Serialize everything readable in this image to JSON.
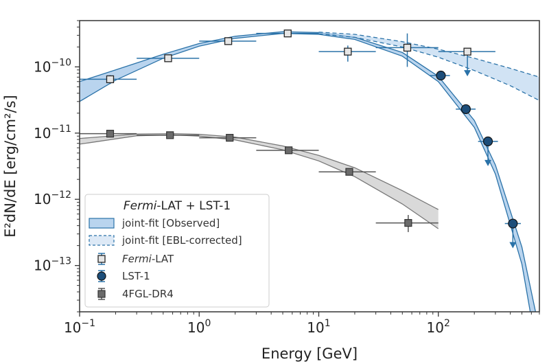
{
  "chart_data": {
    "type": "scatter",
    "x_scale": "log",
    "y_scale": "log",
    "xlabel": "Energy   [GeV]",
    "ylabel": "E²dN/dE   [erg/cm²/s]",
    "xlim": [
      0.1,
      700
    ],
    "ylim": [
      2e-14,
      5e-10
    ],
    "x_ticks": [
      {
        "value": 0.1,
        "base": "10",
        "exp": "−1"
      },
      {
        "value": 1,
        "base": "10",
        "exp": "0"
      },
      {
        "value": 10,
        "base": "10",
        "exp": "1"
      },
      {
        "value": 100,
        "base": "10",
        "exp": "2"
      }
    ],
    "y_ticks": [
      {
        "value": 1e-13,
        "base": "10",
        "exp": "−13"
      },
      {
        "value": 1e-12,
        "base": "10",
        "exp": "−12"
      },
      {
        "value": 1e-11,
        "base": "10",
        "exp": "−11"
      },
      {
        "value": 1e-10,
        "base": "10",
        "exp": "−10"
      }
    ],
    "grid": false,
    "legend": {
      "placement": "bottom-left",
      "title_italic": "Fermi",
      "title_rest": "-LAT + LST-1",
      "entries": [
        {
          "kind": "band",
          "label": "joint-fit [Observed]"
        },
        {
          "kind": "band-dashed",
          "label": "joint-fit [EBL-corrected]"
        },
        {
          "kind": "marker-square-open",
          "label_italic": "Fermi",
          "label_rest": "-LAT"
        },
        {
          "kind": "marker-circle",
          "label": "LST-1"
        },
        {
          "kind": "marker-square-grey",
          "label": "4FGL-DR4"
        }
      ]
    },
    "colors": {
      "blue": "#2a72a8",
      "blue_fill": "#b9d4ee",
      "blue_marker": "#1d4e7a",
      "grey": "#555555",
      "grey_fill": "#d9d9d9",
      "open_marker_fill": "#e6e6e6"
    },
    "series": [
      {
        "name": "Fermi-LAT",
        "marker": "square-open",
        "points": [
          {
            "x": 0.18,
            "y": 6.5e-11,
            "xlo": 0.1,
            "xhi": 0.3,
            "ylo": 5.5e-11,
            "yhi": 7.5e-11
          },
          {
            "x": 0.55,
            "y": 1.35e-10,
            "xlo": 0.3,
            "xhi": 1.0,
            "ylo": 1.25e-10,
            "yhi": 1.45e-10
          },
          {
            "x": 1.75,
            "y": 2.45e-10,
            "xlo": 1.0,
            "xhi": 3.0,
            "ylo": 2.3e-10,
            "yhi": 2.6e-10
          },
          {
            "x": 5.5,
            "y": 3.2e-10,
            "xlo": 3.0,
            "xhi": 10.0,
            "ylo": 3e-10,
            "yhi": 3.4e-10
          },
          {
            "x": 17.5,
            "y": 1.7e-10,
            "xlo": 10.0,
            "xhi": 30.0,
            "ylo": 1.2e-10,
            "yhi": 2.1e-10
          },
          {
            "x": 55,
            "y": 1.95e-10,
            "xlo": 30.0,
            "xhi": 100.0,
            "ylo": 1e-10,
            "yhi": 3.2e-10
          },
          {
            "x": 175,
            "y": 1.7e-10,
            "xlo": 100.0,
            "xhi": 300.0,
            "upper_limit": true
          }
        ]
      },
      {
        "name": "LST-1",
        "marker": "circle",
        "points": [
          {
            "x": 105,
            "y": 7.4e-11,
            "xlo": 85,
            "xhi": 125,
            "ylo": 6.8e-11,
            "yhi": 8e-11
          },
          {
            "x": 170,
            "y": 2.3e-11,
            "xlo": 140,
            "xhi": 205,
            "ylo": 2e-11,
            "yhi": 2.6e-11
          },
          {
            "x": 260,
            "y": 7.5e-12,
            "xlo": 215,
            "xhi": 315,
            "upper_limit": true
          },
          {
            "x": 420,
            "y": 4.3e-13,
            "xlo": 360,
            "xhi": 490,
            "upper_limit": true
          }
        ]
      },
      {
        "name": "4FGL-DR4",
        "marker": "square-grey",
        "points": [
          {
            "x": 0.18,
            "y": 9.8e-12,
            "xlo": 0.1,
            "xhi": 0.3,
            "ylo": 9.4e-12,
            "yhi": 1.02e-11
          },
          {
            "x": 0.57,
            "y": 9.3e-12,
            "xlo": 0.3,
            "xhi": 1.0,
            "ylo": 8.9e-12,
            "yhi": 9.7e-12
          },
          {
            "x": 1.8,
            "y": 8.5e-12,
            "xlo": 1.0,
            "xhi": 3.0,
            "ylo": 8.1e-12,
            "yhi": 8.9e-12
          },
          {
            "x": 5.6,
            "y": 5.5e-12,
            "xlo": 3.0,
            "xhi": 10.0,
            "ylo": 5.2e-12,
            "yhi": 5.8e-12
          },
          {
            "x": 18,
            "y": 2.6e-12,
            "xlo": 10.0,
            "xhi": 30.0,
            "ylo": 2.4e-12,
            "yhi": 2.8e-12
          },
          {
            "x": 56,
            "y": 4.4e-13,
            "xlo": 30.0,
            "xhi": 100.0,
            "ylo": 3.2e-13,
            "yhi": 5.8e-13
          }
        ]
      }
    ],
    "bands": [
      {
        "name": "joint-fit [Observed]",
        "style": "solid",
        "x": [
          0.1,
          0.2,
          0.5,
          1,
          2,
          5,
          10,
          20,
          50,
          100,
          200,
          300,
          500,
          650
        ],
        "center": [
          4.3e-11,
          7.6e-11,
          1.45e-10,
          2.15e-10,
          2.8e-10,
          3.3e-10,
          3.2e-10,
          2.7e-10,
          1.55e-10,
          6.6e-11,
          1.38e-11,
          2.8e-12,
          1.4e-13,
          1.2e-14
        ],
        "upper": [
          6e-11,
          9e-11,
          1.55e-10,
          2.25e-10,
          2.9e-10,
          3.4e-10,
          3.3e-10,
          2.8e-10,
          1.65e-10,
          7.2e-11,
          1.55e-11,
          3.3e-12,
          1.9e-13,
          2e-14
        ],
        "lower": [
          3e-11,
          6.3e-11,
          1.35e-10,
          2.05e-10,
          2.7e-10,
          3.2e-10,
          3.1e-10,
          2.6e-10,
          1.45e-10,
          6e-11,
          1.22e-11,
          2.4e-12,
          1.05e-13,
          7e-15
        ]
      },
      {
        "name": "joint-fit [EBL-corrected]",
        "style": "dashed",
        "x": [
          10,
          20,
          50,
          100,
          200,
          400,
          700
        ],
        "center": [
          3.25e-10,
          2.95e-10,
          2.2e-10,
          1.6e-10,
          1.1e-10,
          7e-11,
          4.5e-11
        ],
        "upper": [
          3.35e-10,
          3.1e-10,
          2.4e-10,
          1.85e-10,
          1.35e-10,
          9.5e-11,
          7e-11
        ],
        "lower": [
          3.15e-10,
          2.8e-10,
          2e-10,
          1.4e-10,
          8.8e-11,
          5.2e-11,
          3.1e-11
        ]
      },
      {
        "name": "4FGL-DR4 model",
        "style": "grey",
        "x": [
          0.1,
          0.3,
          0.6,
          1,
          2,
          5,
          10,
          20,
          50,
          100
        ],
        "center": [
          7.6e-12,
          9.4e-12,
          9.6e-12,
          9.3e-12,
          8.3e-12,
          6e-12,
          4.2e-12,
          2.6e-12,
          1.1e-12,
          5.2e-13
        ],
        "upper": [
          8.3e-12,
          9.7e-12,
          9.8e-12,
          9.6e-12,
          8.7e-12,
          6.4e-12,
          4.6e-12,
          3e-12,
          1.35e-12,
          7e-13
        ],
        "lower": [
          6.8e-12,
          9.1e-12,
          9.4e-12,
          9e-12,
          7.9e-12,
          5.6e-12,
          3.8e-12,
          2.2e-12,
          8.5e-13,
          3.6e-13
        ]
      }
    ]
  }
}
